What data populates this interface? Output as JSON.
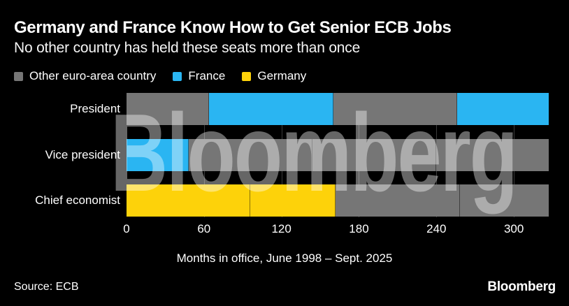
{
  "header": {
    "title": "Germany and France Know How to Get Senior ECB Jobs",
    "subtitle": "No other country has held these seats more than once"
  },
  "legend": [
    {
      "label": "Other euro-area country",
      "color": "#767676"
    },
    {
      "label": "France",
      "color": "#2ab5f2"
    },
    {
      "label": "Germany",
      "color": "#fdd20a"
    }
  ],
  "chart_data": {
    "type": "bar",
    "orientation": "horizontal",
    "stacked": true,
    "categories": [
      "President",
      "Vice president",
      "Chief economist"
    ],
    "unit": "months",
    "xlabel": "Months in office, June 1998 – Sept. 2025",
    "xticks": [
      0,
      60,
      120,
      180,
      240,
      300
    ],
    "xlim": [
      0,
      327
    ],
    "grid": "vertical",
    "legend_position": "top",
    "colors": {
      "Other euro-area country": "#767676",
      "France": "#2ab5f2",
      "Germany": "#fdd20a"
    },
    "bars": [
      {
        "category": "President",
        "segments": [
          {
            "group": "Other euro-area country",
            "value": 64
          },
          {
            "group": "France",
            "value": 96
          },
          {
            "group": "Other euro-area country",
            "value": 96
          },
          {
            "group": "France",
            "value": 71
          }
        ]
      },
      {
        "category": "Vice president",
        "segments": [
          {
            "group": "France",
            "value": 48
          },
          {
            "group": "Other euro-area country",
            "value": 96
          },
          {
            "group": "Other euro-area country",
            "value": 96
          },
          {
            "group": "Other euro-area country",
            "value": 87
          }
        ]
      },
      {
        "category": "Chief economist",
        "segments": [
          {
            "group": "Germany",
            "value": 96
          },
          {
            "group": "Germany",
            "value": 66
          },
          {
            "group": "Other euro-area country",
            "value": 96
          },
          {
            "group": "Other euro-area country",
            "value": 69
          }
        ]
      }
    ]
  },
  "watermark": "Bloomberg",
  "footer": {
    "source": "Source: ECB",
    "logo": "Bloomberg"
  }
}
